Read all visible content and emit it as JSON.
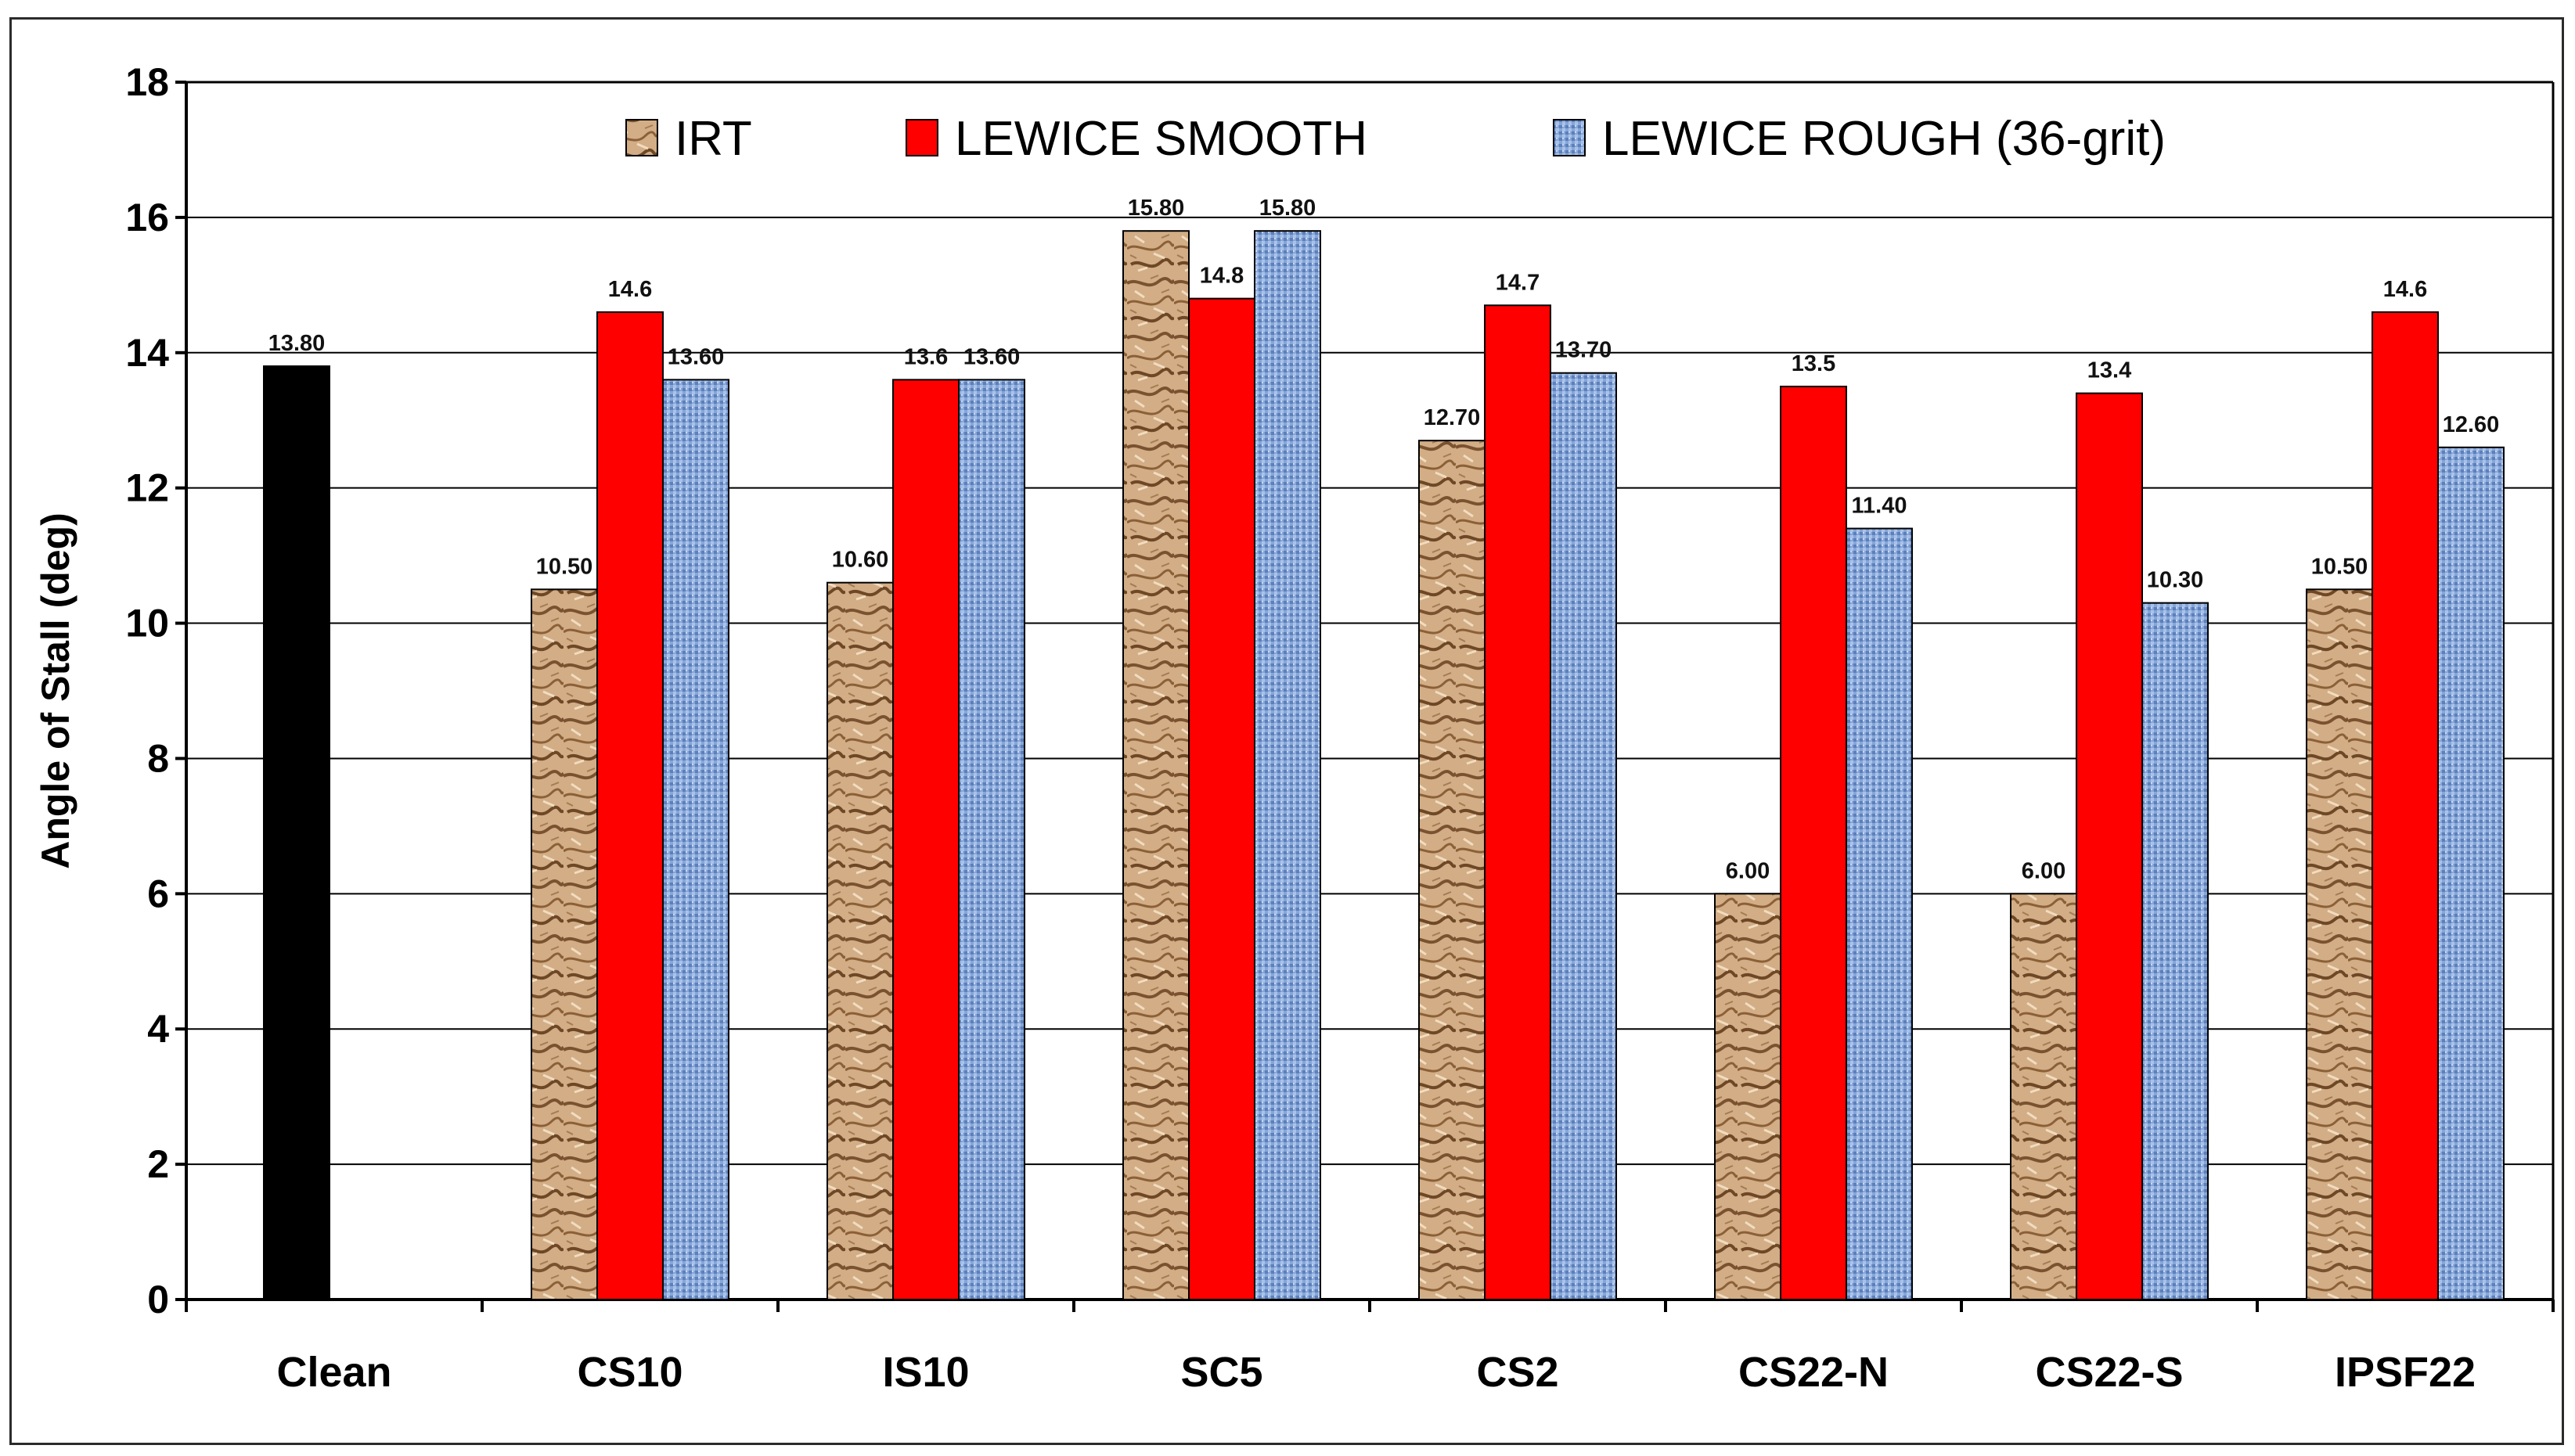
{
  "chart_data": {
    "type": "bar",
    "title": "",
    "xlabel": "",
    "ylabel": "Angle of Stall (deg)",
    "ylim": [
      0,
      18
    ],
    "yticks": [
      "0",
      "2",
      "4",
      "6",
      "8",
      "10",
      "12",
      "14",
      "16",
      "18"
    ],
    "categories": [
      "Clean",
      "CS10",
      "IS10",
      "SC5",
      "CS2",
      "CS22-N",
      "CS22-S",
      "IPSF22"
    ],
    "clean": {
      "name": "Clean",
      "value": 13.8,
      "label": "13.80",
      "color": "#000000"
    },
    "series": [
      {
        "name": "IRT",
        "color": "#c9a27a",
        "pattern": "textured-sand",
        "values": [
          null,
          10.5,
          10.6,
          15.8,
          12.7,
          6.0,
          6.0,
          10.5
        ],
        "labels": [
          "",
          "10.50",
          "10.60",
          "15.80",
          "12.70",
          "6.00",
          "6.00",
          "10.50"
        ]
      },
      {
        "name": "LEWICE SMOOTH",
        "color": "#ff0000",
        "pattern": "solid",
        "values": [
          null,
          14.6,
          13.6,
          14.8,
          14.7,
          13.5,
          13.4,
          14.6
        ],
        "labels": [
          "",
          "14.6",
          "13.6",
          "14.8",
          "14.7",
          "13.5",
          "13.4",
          "14.6"
        ]
      },
      {
        "name": "LEWICE ROUGH (36-grit)",
        "color": "#7d9fd4",
        "pattern": "blue-mesh",
        "values": [
          null,
          13.6,
          13.6,
          15.8,
          13.7,
          11.4,
          10.3,
          12.6
        ],
        "labels": [
          "",
          "13.60",
          "13.60",
          "15.80",
          "13.70",
          "11.40",
          "10.30",
          "12.60"
        ]
      }
    ],
    "grid": true,
    "legend": "top-center"
  }
}
